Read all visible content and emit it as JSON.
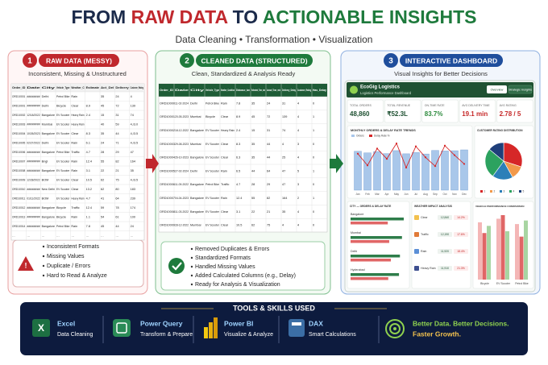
{
  "header": {
    "title_parts": [
      "FROM ",
      "RAW DATA",
      " TO ",
      "ACTIONABLE INSIGHTS"
    ],
    "subtitle": "Data Cleaning • Transformation • Visualization"
  },
  "panels": [
    {
      "number": "1",
      "title": "RAW DATA (MESSY)",
      "subtitle": "Inconsistent, Missing & Unstructured",
      "table": {
        "headers": [
          "Order_ID",
          "Date",
          "City",
          "Vehicle_Type",
          "Weather_C",
          "Estimate",
          "Act_Del",
          "Delivery",
          "Customer_Rating"
        ],
        "rows": [
          [
            "ORD10001",
            "########",
            "Delhi",
            "Petrol Bike",
            "Rain",
            "",
            "35",
            "24",
            "4"
          ],
          [
            "ORD10001",
            "########",
            "Delhi",
            "Bicycle",
            "Clear",
            "8.9",
            "45",
            "72",
            "139"
          ],
          [
            "ORD10002",
            "12/18/2022",
            "Bangalore",
            "EV Scooter",
            "Heavy Rain",
            "2.4",
            "15",
            "31",
            "74"
          ],
          [
            "ORD10003",
            "########",
            "Mumbai",
            "EV Scooter",
            "Heavy Rain",
            "",
            "40",
            "59",
            "4,/3.0"
          ],
          [
            "ORD10004",
            "10/26/2023",
            "Bangalore",
            "EV Scooter",
            "Clear",
            "8.3",
            "35",
            "44",
            "4,/3.5"
          ],
          [
            "ORD10005",
            "02/27/2022",
            "Delhi",
            "EV Scooter",
            "Rain",
            "6.1",
            "24",
            "71",
            "4,/3.5"
          ],
          [
            "ORD10006",
            "########",
            "Bangalore",
            "Petrol Bike",
            "Traffic",
            "4.7",
            "28",
            "29",
            "47"
          ],
          [
            "ORD10007",
            "########",
            "Bngl",
            "EV Scooter",
            "Rain",
            "12.4",
            "55",
            "82",
            "164"
          ],
          [
            "ORD10008",
            "########",
            "Bangalore",
            "EV Scooter",
            "Rain",
            "3.1",
            "22",
            "21",
            "35"
          ],
          [
            "ORD10009",
            "12/28/2022",
            "BOM",
            "EV Scooter",
            "Clear",
            "10.5",
            "62",
            "75",
            "4,/3.5"
          ],
          [
            "ORD10010",
            "########",
            "New Delhi",
            "EV Scooter",
            "Clear",
            "13.2",
            "62",
            "80",
            "183"
          ],
          [
            "ORD10011",
            "01/11/2022",
            "BOM",
            "EV Scooter",
            "Heavy Rain",
            "4.7",
            "41",
            "64",
            "239"
          ],
          [
            "ORD10012",
            "########",
            "Bangalore",
            "Bicycle",
            "Traffic",
            "12.4",
            "59",
            "78",
            "174"
          ],
          [
            "ORD10013",
            "########",
            "Bangalore",
            "Bicycle",
            "Rain",
            "1.1",
            "54",
            "61",
            "100"
          ],
          [
            "ORD10014",
            "########",
            "Bangalore",
            "Petrol Bike",
            "Rain",
            "7.8",
            "45",
            "44",
            "24"
          ],
          [
            "…",
            "…",
            "…",
            "…",
            "…",
            "…",
            "…",
            "…",
            "…"
          ]
        ]
      },
      "notes": [
        "Inconsistent Formats",
        "Missing Values",
        "Duplicate / Errors",
        "Hard to Read & Analyze"
      ]
    },
    {
      "number": "2",
      "title": "CLEANED DATA (STRUCTURED)",
      "subtitle": "Clean, Standardized & Analysis Ready",
      "table": {
        "headers": [
          "Order_ID",
          "Date",
          "City",
          "Vehicle_Type",
          "Weather_Condition",
          "Distance_km",
          "Estimated_Time_min",
          "Actual_Time_min",
          "Delivery_Delay",
          "Customer_Rating",
          "Has_Delay"
        ],
        "rows": [
          [
            "ORD10000",
            "11-02-2024",
            "Delhi",
            "Petrol Bike",
            "Rain",
            "7.8",
            "35",
            "24",
            "31",
            "4",
            "0"
          ],
          [
            "ORD10001",
            "20-05-2023",
            "Mumbai",
            "Bicycle",
            "Clear",
            "8.9",
            "45",
            "72",
            "139",
            "4",
            "1"
          ],
          [
            "ORD10002",
            "18-12-2022",
            "Bangalore",
            "EV Scooter",
            "Heavy Rain",
            "2.4",
            "15",
            "31",
            "74",
            "4",
            "1"
          ],
          [
            "ORD10003",
            "29-08-2023",
            "Mumbai",
            "EV Scooter",
            "Clear",
            "8.3",
            "35",
            "44",
            "4",
            "3",
            "0"
          ],
          [
            "ORD10004",
            "26-10-2023",
            "Bangalore",
            "EV Scooter",
            "Clear",
            "6.3",
            "35",
            "44",
            "25",
            "4",
            "0"
          ],
          [
            "ORD10005",
            "27-02-2024",
            "Delhi",
            "EV Scooter",
            "Rain",
            "6.5",
            "44",
            "64",
            "47",
            "5",
            "1"
          ],
          [
            "ORD10006",
            "11-09-2022",
            "Bangalore",
            "Petrol Bike",
            "Traffic",
            "4.7",
            "28",
            "29",
            "47",
            "3",
            "0"
          ],
          [
            "ORD10007",
            "04-04-2023",
            "Bangalore",
            "EV Scooter",
            "Rain",
            "12.4",
            "55",
            "82",
            "164",
            "2",
            "1"
          ],
          [
            "ORD10008",
            "11-03-2022",
            "Bangalore",
            "EV Scooter",
            "Clear",
            "3.1",
            "22",
            "21",
            "35",
            "4",
            "0"
          ],
          [
            "ORD10009",
            "28-12-2022",
            "Mumbai",
            "EV Scooter",
            "Clear",
            "10.5",
            "62",
            "75",
            "4",
            "4",
            "0"
          ]
        ]
      },
      "notes": [
        "Removed Duplicates & Errors",
        "Standardized Formats",
        "Handled Missing Values",
        "Added Calculated Columns (e.g., Delay)",
        "Ready for Analysis & Visualization"
      ]
    },
    {
      "number": "3",
      "title": "INTERACTIVE DASHBOARD",
      "subtitle": "Visual Insights for Better Decisions"
    }
  ],
  "dashboard": {
    "brand": "EcoGig Logistics",
    "brand_sub": "Logistics Performance Dashboard",
    "buttons": [
      "Overview",
      "Strategic Insights"
    ],
    "kpis": [
      {
        "label": "TOTAL ORDERS",
        "value": "48,860",
        "color": "#1f5132"
      },
      {
        "label": "TOTAL REVENUE",
        "value": "₹52.3L",
        "color": "#1f5132"
      },
      {
        "label": "ON-TIME RATE",
        "value": "83.7%",
        "color": "#2e8b3e"
      },
      {
        "label": "AVG DELIVERY TIME",
        "value": "19.1 min",
        "color": "#c62828"
      },
      {
        "label": "AVG RATING",
        "value": "2.78 / 5",
        "color": "#c62828"
      }
    ],
    "trend": {
      "title": "MONTHLY ORDERS & DELAY RATE TRENDS",
      "legend": [
        "Orders",
        "Delay Rate %"
      ],
      "months": [
        "Jan",
        "Feb",
        "Mar",
        "Apr",
        "May",
        "Jun",
        "Jul",
        "Aug",
        "Sep",
        "Oct",
        "Nov",
        "Dec"
      ],
      "orders": [
        4150,
        3980,
        4120,
        3900,
        4220,
        3880,
        4020,
        3860,
        4240,
        4180,
        4210,
        4300
      ],
      "delay": [
        16.8,
        15.2,
        17.5,
        16.1,
        18.2,
        14.9,
        17.8,
        16.3,
        15.1,
        17.9,
        16.6,
        15.4
      ],
      "bar_color": "#a9c7ea",
      "line_color": "#d62728"
    },
    "pie": {
      "title": "CUSTOMER RATING DISTRIBUTION",
      "labels": [
        "1",
        "2",
        "3",
        "4",
        "5"
      ],
      "values": [
        30,
        12,
        18,
        26,
        14
      ],
      "colors": [
        "#d62728",
        "#f2994a",
        "#2c7fb8",
        "#2ca25f",
        "#1f3f7a"
      ]
    },
    "city": {
      "title": "CITY — ORDERS & DELAY RATE",
      "names": [
        "Bangalore",
        "Mumbai",
        "Delhi",
        "Hyderabad"
      ],
      "orders": [
        12840,
        12410,
        11920,
        11690
      ],
      "delay": [
        15.8,
        16.4,
        17.1,
        16.0
      ]
    },
    "weather": {
      "title": "WEATHER IMPACT ANALYSIS",
      "rows": [
        [
          "Clear",
          "12,840",
          "14.2%"
        ],
        [
          "Traffic",
          "12,190",
          "17.6%"
        ],
        [
          "Rain",
          "11,920",
          "18.4%"
        ],
        [
          "Heavy Rain",
          "11,910",
          "21.3%"
        ]
      ],
      "colors": [
        "#f2c14e",
        "#e07b39",
        "#5b8fd6",
        "#3d4f8f"
      ]
    },
    "vehicle": {
      "title": "VEHICLE PERFORMANCE COMPARISON",
      "names": [
        "Bicycle",
        "EV Scooter",
        "Petrol Bike"
      ],
      "series": [
        {
          "color": "#f4b6b6",
          "values": [
            3.2,
            3.4,
            3.1
          ]
        },
        {
          "color": "#e06666",
          "values": [
            2.6,
            3.6,
            2.4
          ]
        },
        {
          "color": "#a8d5a2",
          "values": [
            3.0,
            2.7,
            3.3
          ]
        }
      ]
    }
  },
  "tools": {
    "title": "TOOLS & SKILLS USED",
    "items": [
      {
        "name": "Excel",
        "desc": "Data Cleaning"
      },
      {
        "name": "Power Query",
        "desc": "Transform & Prepare"
      },
      {
        "name": "Power BI",
        "desc": "Visualize & Analyze"
      },
      {
        "name": "DAX",
        "desc": "Smart Calculations"
      }
    ],
    "tagline": [
      "Better Data. Better Decisions.",
      "Faster Growth."
    ]
  }
}
